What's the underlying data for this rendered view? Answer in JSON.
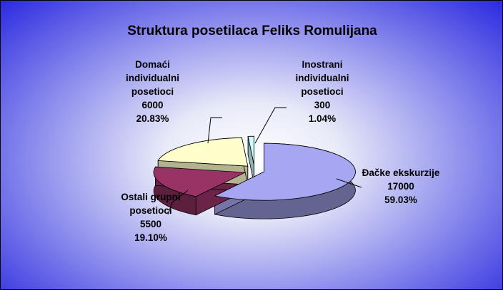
{
  "chart_data": {
    "type": "pie3d",
    "title": "Struktura posetilaca Feliks Romulijana",
    "categories": [
      "Đačke ekskurzije",
      "Ostali grupni posetioci",
      "Domaći individualni posetioci",
      "Inostrani individualni posetioci"
    ],
    "values": [
      17000,
      5500,
      6000,
      300
    ],
    "percentages": [
      59.03,
      19.1,
      20.83,
      1.04
    ],
    "percentage_labels": [
      "59.03%",
      "19.10%",
      "20.83%",
      "1.04%"
    ],
    "colors": [
      "#a6a6f2",
      "#993366",
      "#ffffcc",
      "#ccffff"
    ]
  }
}
